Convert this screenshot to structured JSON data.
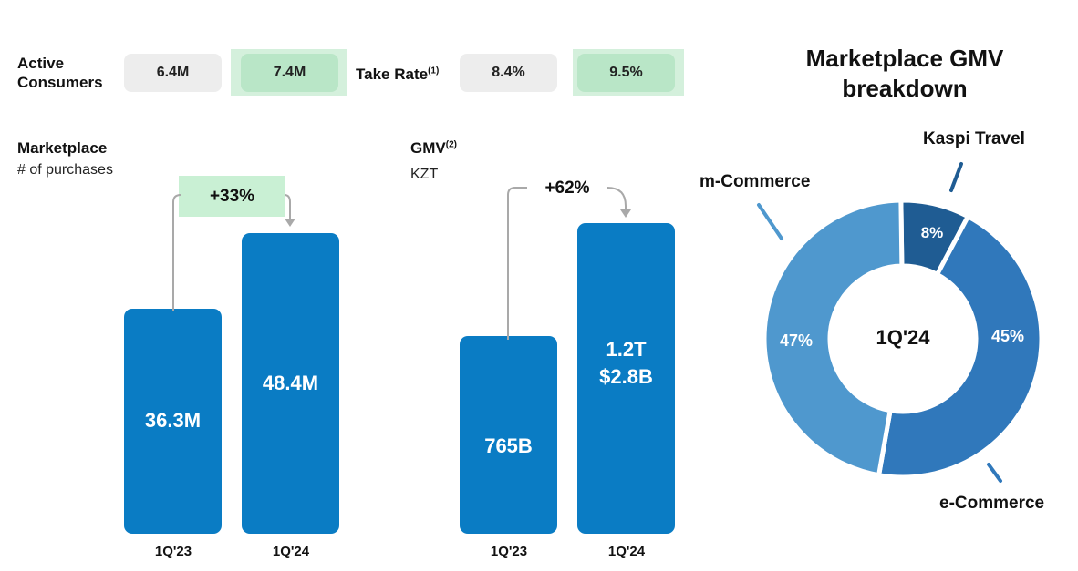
{
  "kpis": {
    "active_consumers": {
      "label_line1": "Active",
      "label_line2": "Consumers",
      "prev": "6.4M",
      "curr": "7.4M"
    },
    "take_rate": {
      "label": "Take Rate",
      "sup": "(1)",
      "prev": "8.4%",
      "curr": "9.5%"
    }
  },
  "colors": {
    "bar": "#0a7cc4",
    "highlight": "#b9e6c7",
    "neutral_box": "#ededed",
    "kaspi_travel": "#1f5c93",
    "e_commerce": "#3078bb",
    "m_commerce": "#4f98ce"
  },
  "chart_data": [
    {
      "type": "bar",
      "title": "Marketplace",
      "subtitle": "# of purchases",
      "categories": [
        "1Q'23",
        "1Q'24"
      ],
      "values": [
        36.3,
        48.4
      ],
      "value_labels": [
        "36.3M",
        "48.4M"
      ],
      "growth_label": "+33%",
      "ylim": [
        0,
        60
      ]
    },
    {
      "type": "bar",
      "title": "GMV",
      "title_sup": "(2)",
      "subtitle": "KZT",
      "categories": [
        "1Q'23",
        "1Q'24"
      ],
      "values": [
        765,
        1200
      ],
      "value_labels": [
        "765B",
        "1.2T"
      ],
      "value_labels_secondary": [
        "",
        "$2.8B"
      ],
      "growth_label": "+62%",
      "ylim": [
        0,
        1600
      ]
    },
    {
      "type": "pie",
      "title": "Marketplace GMV breakdown",
      "center_label": "1Q'24",
      "slices": [
        {
          "name": "Kaspi Travel",
          "value": 8,
          "label": "8%"
        },
        {
          "name": "e-Commerce",
          "value": 45,
          "label": "45%"
        },
        {
          "name": "m-Commerce",
          "value": 47,
          "label": "47%"
        }
      ]
    }
  ]
}
